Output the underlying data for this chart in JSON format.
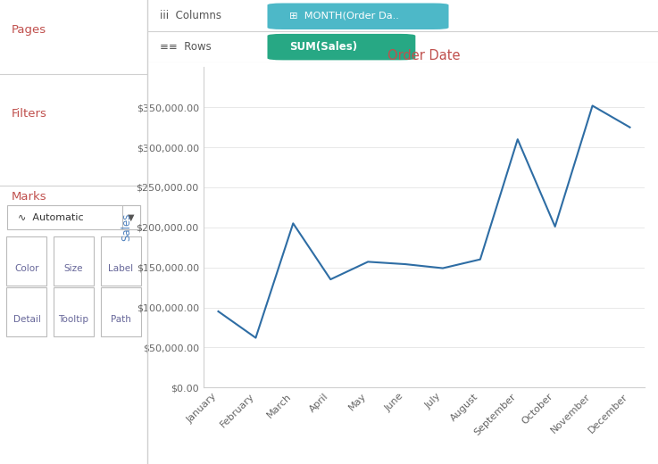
{
  "months": [
    "January",
    "February",
    "March",
    "April",
    "May",
    "June",
    "July",
    "August",
    "September",
    "October",
    "November",
    "December"
  ],
  "sales": [
    95000,
    62000,
    205000,
    135000,
    157000,
    154000,
    149000,
    160000,
    310000,
    201000,
    352000,
    325000
  ],
  "line_color": "#2e6da4",
  "line_width": 1.5,
  "title": "Order Date",
  "title_color": "#c0504d",
  "ylabel": "Sales",
  "ylabel_color": "#4f81bd",
  "ylim": [
    0,
    400000
  ],
  "yticks": [
    0,
    50000,
    100000,
    150000,
    200000,
    250000,
    300000,
    350000
  ],
  "bg_color": "#ffffff",
  "plot_bg_color": "#ffffff",
  "left_panel_bg": "#f7f7f7",
  "grid_color": "#e8e8e8",
  "tick_label_color": "#666666",
  "pages_label": "Pages",
  "filters_label": "Filters",
  "marks_label": "Marks",
  "auto_label": "Automatic",
  "color_label": "Color",
  "size_label": "Size",
  "label_label": "Label",
  "detail_label": "Detail",
  "tooltip_label": "Tooltip",
  "path_label": "Path",
  "columns_label": "Columns",
  "rows_label": "Rows",
  "month_pill": "⊞  MONTH(Order Da..",
  "sales_pill": "SUM(Sales)",
  "pill_cyan": "#4db8c8",
  "pill_green": "#27a884",
  "sidebar_label_color": "#c0504d",
  "btn_label_color": "#666699",
  "separator_color": "#d0d0d0"
}
